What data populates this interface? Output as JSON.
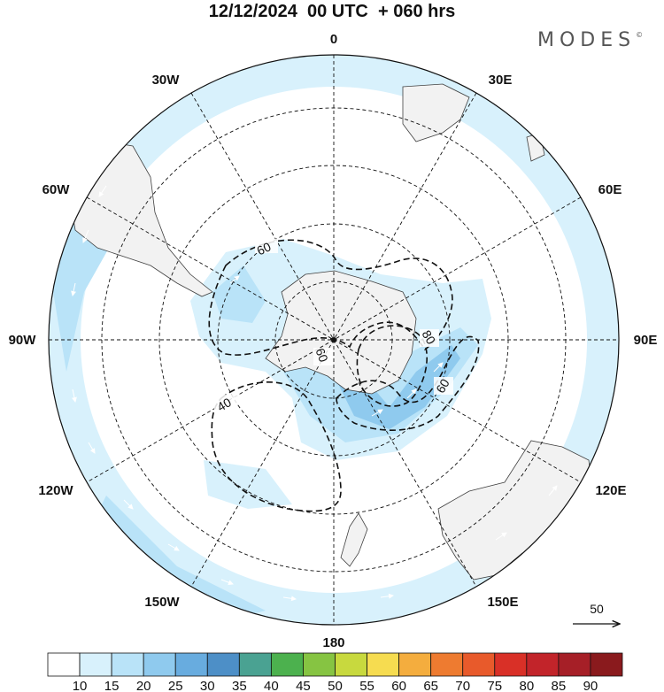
{
  "header": {
    "date": "12/12/2024",
    "cycle": "00 UTC",
    "lead": "+ 060 hrs"
  },
  "brand": {
    "name": "MODES",
    "mark": "©"
  },
  "longitude_labels": [
    "0",
    "30E",
    "60E",
    "90E",
    "120E",
    "150E",
    "180",
    "150W",
    "120W",
    "90W",
    "60W",
    "30W"
  ],
  "contour_labels": [
    "60",
    "60",
    "40",
    "80",
    "60"
  ],
  "reference_vector": {
    "label": "50"
  },
  "colorbar": {
    "ticks": [
      "10",
      "15",
      "20",
      "25",
      "30",
      "35",
      "40",
      "45",
      "50",
      "55",
      "60",
      "65",
      "70",
      "75",
      "80",
      "85",
      "90"
    ],
    "colors": [
      "#ffffff",
      "#d8f1fc",
      "#b9e3f8",
      "#8fcaee",
      "#68acdf",
      "#4d8fc7",
      "#4aa292",
      "#4cb14e",
      "#86c442",
      "#c8d93e",
      "#f6dc50",
      "#f4ad3e",
      "#ee7b30",
      "#e85a2b",
      "#d93027",
      "#c2242a",
      "#a61f27",
      "#8a1a1d"
    ]
  },
  "colors": {
    "land": "#f2f2f2",
    "coast": "#404040",
    "wind_light": "#d8f1fc",
    "wind_mid": "#b9e3f8",
    "wind_strong": "#8fcaee"
  }
}
